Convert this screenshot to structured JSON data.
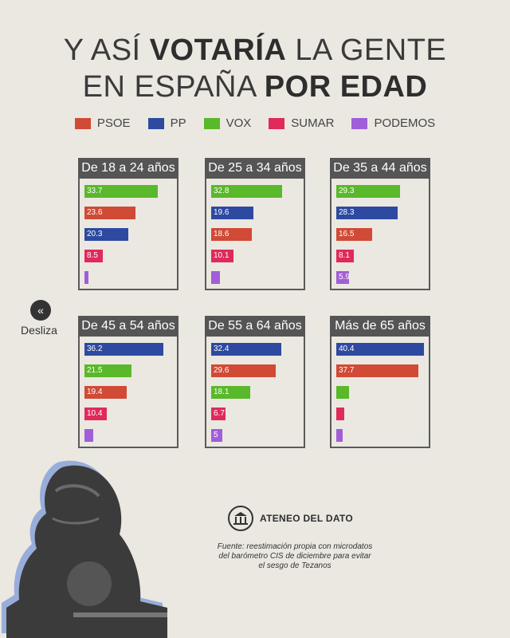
{
  "title": {
    "line1_a": "Y ASÍ ",
    "line1_b": "VOTARÍA",
    "line1_c": " LA GENTE",
    "line2_a": "EN ESPAÑA ",
    "line2_b": "POR EDAD"
  },
  "colors": {
    "PSOE": "#d04a36",
    "PP": "#2d4aa0",
    "VOX": "#5ab82b",
    "SUMAR": "#e02a5a",
    "PODEMOS": "#a05ed8"
  },
  "legend": [
    "PSOE",
    "PP",
    "VOX",
    "SUMAR",
    "PODEMOS"
  ],
  "chart_data": {
    "type": "bar",
    "orientation": "horizontal",
    "panels": [
      {
        "title": "De 18 a 24 años",
        "bars": [
          {
            "party": "VOX",
            "value": 33.7,
            "label": "33.7"
          },
          {
            "party": "PSOE",
            "value": 23.6,
            "label": "23.6"
          },
          {
            "party": "PP",
            "value": 20.3,
            "label": "20.3"
          },
          {
            "party": "SUMAR",
            "value": 8.5,
            "label": "8.5"
          },
          {
            "party": "PODEMOS",
            "value": 1.5,
            "label": ""
          }
        ]
      },
      {
        "title": "De 25 a 34 años",
        "bars": [
          {
            "party": "VOX",
            "value": 32.8,
            "label": "32.8"
          },
          {
            "party": "PP",
            "value": 19.6,
            "label": "19.6"
          },
          {
            "party": "PSOE",
            "value": 18.6,
            "label": "18.6"
          },
          {
            "party": "SUMAR",
            "value": 10.1,
            "label": "10.1"
          },
          {
            "party": "PODEMOS",
            "value": 4.0,
            "label": ""
          }
        ]
      },
      {
        "title": "De 35 a 44 años",
        "bars": [
          {
            "party": "VOX",
            "value": 29.3,
            "label": "29.3"
          },
          {
            "party": "PP",
            "value": 28.3,
            "label": "28.3"
          },
          {
            "party": "PSOE",
            "value": 16.5,
            "label": "16.5"
          },
          {
            "party": "SUMAR",
            "value": 8.1,
            "label": "8.1"
          },
          {
            "party": "PODEMOS",
            "value": 5.9,
            "label": "5.9"
          }
        ]
      },
      {
        "title": "De 45 a 54 años",
        "bars": [
          {
            "party": "PP",
            "value": 36.2,
            "label": "36.2"
          },
          {
            "party": "VOX",
            "value": 21.5,
            "label": "21.5"
          },
          {
            "party": "PSOE",
            "value": 19.4,
            "label": "19.4"
          },
          {
            "party": "SUMAR",
            "value": 10.4,
            "label": "10.4"
          },
          {
            "party": "PODEMOS",
            "value": 4.0,
            "label": ""
          }
        ]
      },
      {
        "title": "De 55 a 64 años",
        "bars": [
          {
            "party": "PP",
            "value": 32.4,
            "label": "32.4"
          },
          {
            "party": "PSOE",
            "value": 29.6,
            "label": "29.6"
          },
          {
            "party": "VOX",
            "value": 18.1,
            "label": "18.1"
          },
          {
            "party": "SUMAR",
            "value": 6.7,
            "label": "6.7"
          },
          {
            "party": "PODEMOS",
            "value": 5,
            "label": "5"
          }
        ]
      },
      {
        "title": "Más de 65 años",
        "bars": [
          {
            "party": "PP",
            "value": 40.4,
            "label": "40.4"
          },
          {
            "party": "PSOE",
            "value": 37.7,
            "label": "37.7"
          },
          {
            "party": "VOX",
            "value": 6.0,
            "label": ""
          },
          {
            "party": "SUMAR",
            "value": 3.5,
            "label": ""
          },
          {
            "party": "PODEMOS",
            "value": 3.0,
            "label": ""
          }
        ]
      }
    ],
    "xlim": [
      0,
      40.4
    ]
  },
  "slide": {
    "label": "Desliza",
    "icon": "double-chevron-left-icon"
  },
  "brand": {
    "name": "ATENEO DEL DATO",
    "icon": "building-icon"
  },
  "source": "Fuente: reestimación propia con microdatos del barómetro CIS de diciembre para evitar el sesgo de Tezanos",
  "illustration": "lion-statue"
}
